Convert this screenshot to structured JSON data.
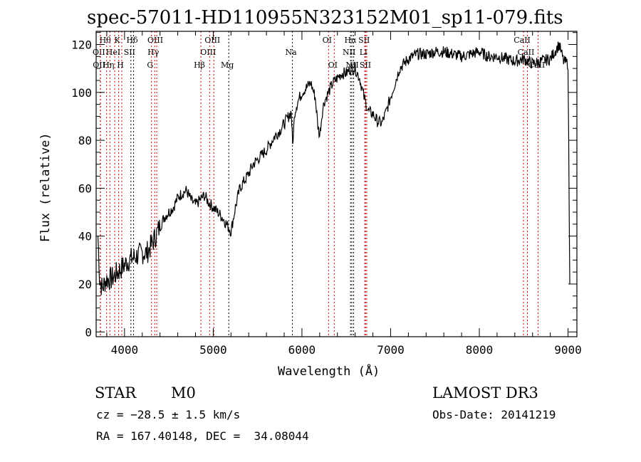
{
  "chart_data": {
    "type": "line",
    "title": "spec-57011-HD110955N323152M01_sp11-079.fits",
    "xlabel": "Wavelength (Å)",
    "ylabel": "Flux (relative)",
    "xlim": [
      3680,
      9100
    ],
    "ylim": [
      -2,
      125.5
    ],
    "xticks": [
      4000,
      5000,
      6000,
      7000,
      8000,
      9000
    ],
    "yticks": [
      0,
      20,
      40,
      60,
      80,
      100,
      120
    ],
    "series": [
      {
        "name": "spectrum",
        "x": [
          3700,
          3720,
          3750,
          3780,
          3800,
          3850,
          3900,
          3950,
          4000,
          4050,
          4100,
          4150,
          4200,
          4250,
          4300,
          4350,
          4400,
          4450,
          4500,
          4550,
          4600,
          4650,
          4700,
          4750,
          4800,
          4850,
          4900,
          4950,
          5000,
          5050,
          5100,
          5150,
          5200,
          5250,
          5300,
          5350,
          5400,
          5450,
          5500,
          5550,
          5600,
          5650,
          5700,
          5750,
          5800,
          5850,
          5880,
          5895,
          5920,
          5950,
          6000,
          6050,
          6100,
          6150,
          6180,
          6200,
          6230,
          6250,
          6300,
          6350,
          6400,
          6450,
          6500,
          6550,
          6600,
          6650,
          6700,
          6750,
          6800,
          6850,
          6900,
          6950,
          7000,
          7050,
          7100,
          7200,
          7300,
          7400,
          7500,
          7600,
          7700,
          7800,
          7900,
          8000,
          8100,
          8200,
          8300,
          8400,
          8500,
          8600,
          8700,
          8800,
          8850,
          8900,
          8950,
          9000,
          9020
        ],
        "y": [
          40,
          22,
          18,
          21,
          22,
          22,
          24,
          26,
          28,
          30,
          31,
          32,
          33,
          33,
          36,
          40,
          44,
          48,
          50,
          52,
          56,
          58,
          59,
          55,
          53,
          55,
          57,
          54,
          52,
          50,
          48,
          45,
          42,
          52,
          60,
          63,
          66,
          70,
          72,
          74,
          76,
          79,
          82,
          84,
          87,
          90,
          92,
          78,
          92,
          96,
          100,
          102,
          104,
          98,
          86,
          82,
          92,
          96,
          100,
          104,
          106,
          108,
          108,
          110,
          110,
          106,
          98,
          92,
          91,
          88,
          87,
          92,
          98,
          104,
          110,
          114,
          116,
          116,
          117,
          117,
          116,
          115,
          116,
          117,
          115,
          115,
          114,
          113,
          114,
          112,
          113,
          114,
          117,
          120,
          113,
          112,
          20
        ]
      }
    ],
    "lines": [
      {
        "label": "Hθ",
        "wl": 3798,
        "row": 0,
        "color": "#c00000"
      },
      {
        "label": "K",
        "wl": 3934,
        "row": 0,
        "color": "#c00000"
      },
      {
        "label": "Hδ",
        "wl": 4102,
        "row": 0,
        "color": "#000000"
      },
      {
        "label": "OIII",
        "wl": 4363,
        "row": 0,
        "color": "#c00000"
      },
      {
        "label": "OIII",
        "wl": 5007,
        "row": 0,
        "color": "#c00000"
      },
      {
        "label": "OII",
        "wl": 3727,
        "row": 1,
        "color": "#c00000"
      },
      {
        "label": "HeI",
        "wl": 3889,
        "row": 1,
        "color": "#c00000"
      },
      {
        "label": "SII",
        "wl": 4072,
        "row": 1,
        "color": "#000000"
      },
      {
        "label": "Hγ",
        "wl": 4340,
        "row": 1,
        "color": "#c00000"
      },
      {
        "label": "OIII",
        "wl": 4959,
        "row": 1,
        "color": "#c00000"
      },
      {
        "label": "OII",
        "wl": 3729,
        "row": 2,
        "color": "#c00000"
      },
      {
        "label": "Hη",
        "wl": 3835,
        "row": 2,
        "color": "#c00000"
      },
      {
        "label": "H",
        "wl": 3969,
        "row": 2,
        "color": "#c00000"
      },
      {
        "label": "G",
        "wl": 4304,
        "row": 2,
        "color": "#c00000"
      },
      {
        "label": "Hβ",
        "wl": 4861,
        "row": 2,
        "color": "#c00000"
      },
      {
        "label": "Mg",
        "wl": 5175,
        "row": 2,
        "color": "#000000"
      },
      {
        "label": "Na",
        "wl": 5893,
        "row": 1,
        "color": "#000000"
      },
      {
        "label": "OI",
        "wl": 6300,
        "row": 0,
        "color": "#c00000"
      },
      {
        "label": "OI",
        "wl": 6364,
        "row": 2,
        "color": "#c00000"
      },
      {
        "label": "Hα",
        "wl": 6563,
        "row": 0,
        "color": "#000000"
      },
      {
        "label": "NII",
        "wl": 6548,
        "row": 1,
        "color": "#000000"
      },
      {
        "label": "NII",
        "wl": 6583,
        "row": 2,
        "color": "#000000"
      },
      {
        "label": "SII",
        "wl": 6717,
        "row": 0,
        "color": "#c00000"
      },
      {
        "label": "Li",
        "wl": 6708,
        "row": 1,
        "color": "#c00000"
      },
      {
        "label": "SII",
        "wl": 6731,
        "row": 2,
        "color": "#c00000"
      },
      {
        "label": "CaII",
        "wl": 8498,
        "row": 0,
        "color": "#c00000"
      },
      {
        "label": "CaII",
        "wl": 8542,
        "row": 1,
        "color": "#c00000"
      },
      {
        "label": "CaII",
        "wl": 8662,
        "row": 2,
        "color": "#c00000"
      }
    ]
  },
  "info": {
    "class": "STAR",
    "subclass": "M0",
    "cz": "cz = −28.5 ± 1.5 km/s",
    "coords": "RA = 167.40148, DEC =  34.08044",
    "survey": "LAMOST DR3",
    "obsdate": "Obs-Date: 20141219"
  }
}
